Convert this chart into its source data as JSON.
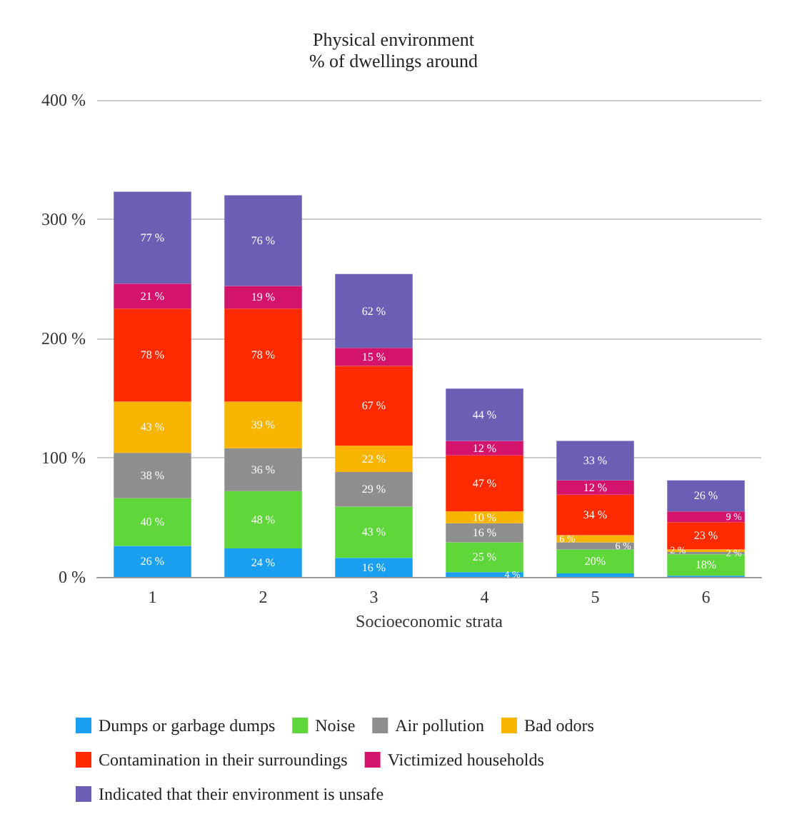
{
  "chart_data": {
    "type": "bar",
    "stacked": true,
    "title": "Physical environment",
    "subtitle": "% of dwellings around",
    "xlabel": "Socioeconomic strata",
    "categories": [
      "1",
      "2",
      "3",
      "4",
      "5",
      "6"
    ],
    "series": [
      {
        "name": "Dumps or garbage dumps",
        "color": "#1a9ff0",
        "values": [
          26,
          24,
          16,
          4,
          3,
          1
        ],
        "value_labels": [
          "26 %",
          "24 %",
          "16 %",
          "4 %",
          null,
          null
        ]
      },
      {
        "name": "Noise",
        "color": "#5fd63a",
        "values": [
          40,
          48,
          43,
          25,
          20,
          18
        ],
        "value_labels": [
          "40 %",
          "48 %",
          "43 %",
          "25 %",
          "20%",
          "18%"
        ]
      },
      {
        "name": "Air pollution",
        "color": "#8e8e8e",
        "values": [
          38,
          36,
          29,
          16,
          6,
          2
        ],
        "value_labels": [
          "38 %",
          "36 %",
          "29 %",
          "16 %",
          "6 %",
          "2 %"
        ]
      },
      {
        "name": "Bad odors",
        "color": "#f7b500",
        "values": [
          43,
          39,
          22,
          10,
          6,
          2
        ],
        "value_labels": [
          "43 %",
          "39 %",
          "22 %",
          "10 %",
          "6 %",
          "2 %"
        ]
      },
      {
        "name": "Contamination in their surroundings",
        "color": "#ff2a00",
        "values": [
          78,
          78,
          67,
          47,
          34,
          23
        ],
        "value_labels": [
          "78 %",
          "78 %",
          "67 %",
          "47 %",
          "34 %",
          "23 %"
        ]
      },
      {
        "name": "Victimized households",
        "color": "#d4136d",
        "values": [
          21,
          19,
          15,
          12,
          12,
          9
        ],
        "value_labels": [
          "21 %",
          "19 %",
          "15 %",
          "12 %",
          "12 %",
          "9 %"
        ]
      },
      {
        "name": "Indicated that their environment is unsafe",
        "color": "#6b5fb5",
        "values": [
          77,
          76,
          62,
          44,
          33,
          26
        ],
        "value_labels": [
          "77 %",
          "76 %",
          "62 %",
          "44 %",
          "33 %",
          "26 %"
        ]
      }
    ],
    "ylim": [
      0,
      400
    ],
    "yticks": [
      {
        "value": 0,
        "label": "0 %"
      },
      {
        "value": 100,
        "label": "100 %"
      },
      {
        "value": 200,
        "label": "200 %"
      },
      {
        "value": 300,
        "label": "300 %"
      },
      {
        "value": 400,
        "label": "400 %"
      }
    ],
    "grid": "y",
    "legend": "bottom"
  }
}
